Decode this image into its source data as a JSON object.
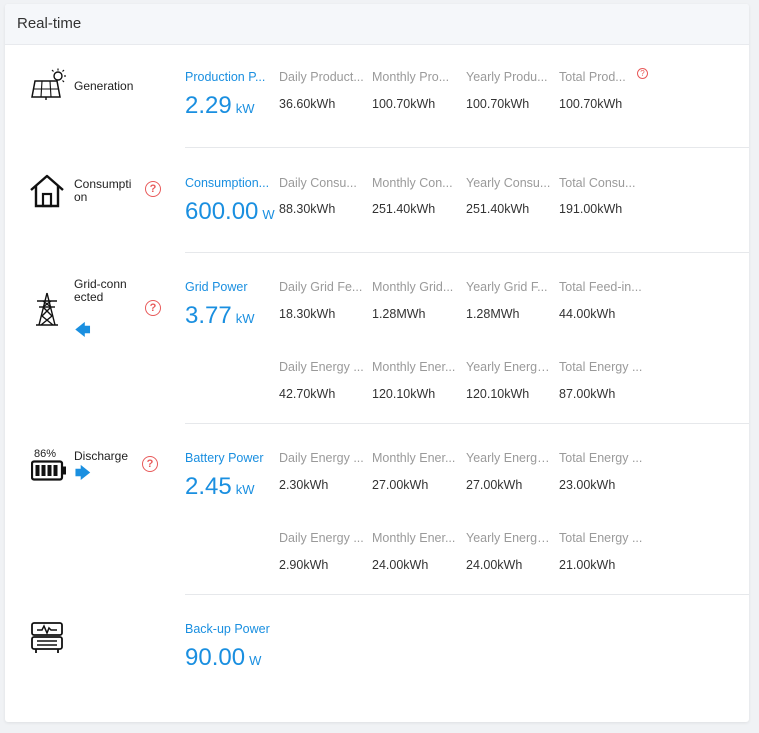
{
  "card": {
    "title": "Real-time"
  },
  "generation": {
    "label": "Generation",
    "main": {
      "label": "Production P...",
      "value": "2.29",
      "unit": "kW"
    },
    "cols": [
      {
        "label": "Daily Product...",
        "value": "36.60kWh"
      },
      {
        "label": "Monthly Pro...",
        "value": "100.70kWh"
      },
      {
        "label": "Yearly Produ...",
        "value": "100.70kWh"
      },
      {
        "label": "Total Prod...",
        "value": "100.70kWh"
      }
    ]
  },
  "consumption": {
    "label": "Consumption",
    "main": {
      "label": "Consumption...",
      "value": "600.00",
      "unit": "W"
    },
    "cols": [
      {
        "label": "Daily Consu...",
        "value": "88.30kWh"
      },
      {
        "label": "Monthly Con...",
        "value": "251.40kWh"
      },
      {
        "label": "Yearly Consu...",
        "value": "251.40kWh"
      },
      {
        "label": "Total Consu...",
        "value": "191.00kWh"
      }
    ]
  },
  "grid": {
    "label": "Grid-connected",
    "direction_icon": "arrow-left-icon",
    "main": {
      "label": "Grid Power",
      "value": "3.77",
      "unit": "kW"
    },
    "cols_row1": [
      {
        "label": "Daily Grid Fe...",
        "value": "18.30kWh"
      },
      {
        "label": "Monthly Grid...",
        "value": "1.28MWh"
      },
      {
        "label": "Yearly Grid F...",
        "value": "1.28MWh"
      },
      {
        "label": "Total Feed-in...",
        "value": "44.00kWh"
      }
    ],
    "cols_row2": [
      {
        "label": "Daily Energy ...",
        "value": "42.70kWh"
      },
      {
        "label": "Monthly Ener...",
        "value": "120.10kWh"
      },
      {
        "label": "Yearly Energy...",
        "value": "120.10kWh"
      },
      {
        "label": "Total Energy ...",
        "value": "87.00kWh"
      }
    ]
  },
  "battery": {
    "label": "Discharge",
    "soc": "86%",
    "direction_icon": "arrow-right-icon",
    "main": {
      "label": "Battery Power",
      "value": "2.45",
      "unit": "kW"
    },
    "cols_row1": [
      {
        "label": "Daily Energy ...",
        "value": "2.30kWh"
      },
      {
        "label": "Monthly Ener...",
        "value": "27.00kWh"
      },
      {
        "label": "Yearly Energy...",
        "value": "27.00kWh"
      },
      {
        "label": "Total Energy ...",
        "value": "23.00kWh"
      }
    ],
    "cols_row2": [
      {
        "label": "Daily Energy ...",
        "value": "2.90kWh"
      },
      {
        "label": "Monthly Ener...",
        "value": "24.00kWh"
      },
      {
        "label": "Yearly Energy...",
        "value": "24.00kWh"
      },
      {
        "label": "Total Energy ...",
        "value": "21.00kWh"
      }
    ]
  },
  "backup": {
    "main": {
      "label": "Back-up Power",
      "value": "90.00",
      "unit": "W"
    }
  },
  "colors": {
    "accent": "#1a8fe0",
    "help": "#e85a5a",
    "muted": "#9a9a9a"
  }
}
